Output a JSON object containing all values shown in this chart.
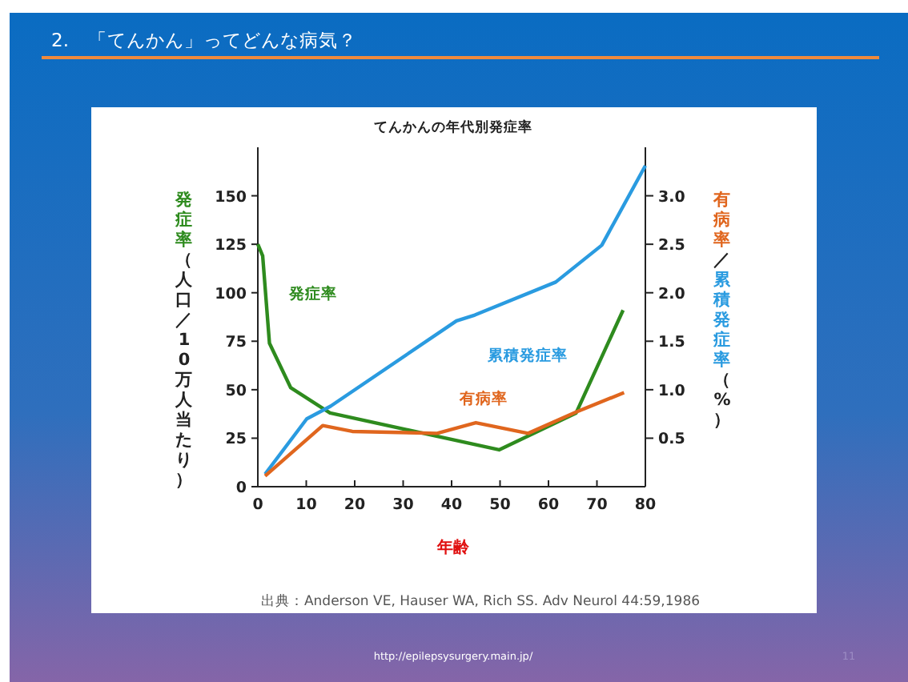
{
  "chart_data": {
    "type": "line",
    "title": "2.　「てんかん」ってどんな病気？",
    "subtitle": "てんかんの年代別発症率",
    "xlabel": "年齢",
    "ylabel": "発症率（人口／10万人当たり）",
    "y2label": "有病率／累積発症率（%）",
    "xlim": [
      0,
      80
    ],
    "xticks": [
      0,
      10,
      20,
      30,
      40,
      50,
      60,
      70,
      80
    ],
    "ylim": [
      0,
      175
    ],
    "yticks": [
      0,
      25,
      50,
      75,
      100,
      125,
      150
    ],
    "y2lim": [
      0,
      3.5
    ],
    "y2ticks": [
      0.5,
      {
        "value": 1,
        "label": "1.0"
      },
      1.5,
      {
        "value": 2,
        "label": "2.0"
      },
      2.5,
      {
        "value": 3,
        "label": "3.0"
      }
    ],
    "grid": false,
    "series": [
      {
        "name": "発症率",
        "color": "#2e8b1e",
        "axis": "y",
        "x": [
          0,
          1,
          2.4,
          6.8,
          14.9,
          49.8,
          65.7,
          75.4
        ],
        "values": [
          125,
          119,
          74,
          51,
          38,
          19,
          38,
          91
        ]
      },
      {
        "name": "累積発症率",
        "color": "#2a9be0",
        "axis": "y2",
        "x": [
          1.5,
          10.1,
          15,
          41,
          44.8,
          61.5,
          71,
          80
        ],
        "values": [
          0.13,
          0.7,
          0.83,
          1.71,
          1.77,
          2.11,
          2.49,
          3.31
        ]
      },
      {
        "name": "有病率",
        "color": "#e0661e",
        "axis": "y2",
        "x": [
          1.5,
          13.4,
          19.5,
          37,
          45,
          55.8,
          65.7,
          75.6
        ],
        "values": [
          0.11,
          0.63,
          0.57,
          0.55,
          0.66,
          0.55,
          0.77,
          0.97
        ]
      }
    ],
    "annotations": [
      "出典：Anderson VE, Hauser WA, Rich SS. Adv Neurol  44:59,1986",
      "http://epilepsysurgery.main.jp/",
      "11"
    ]
  }
}
